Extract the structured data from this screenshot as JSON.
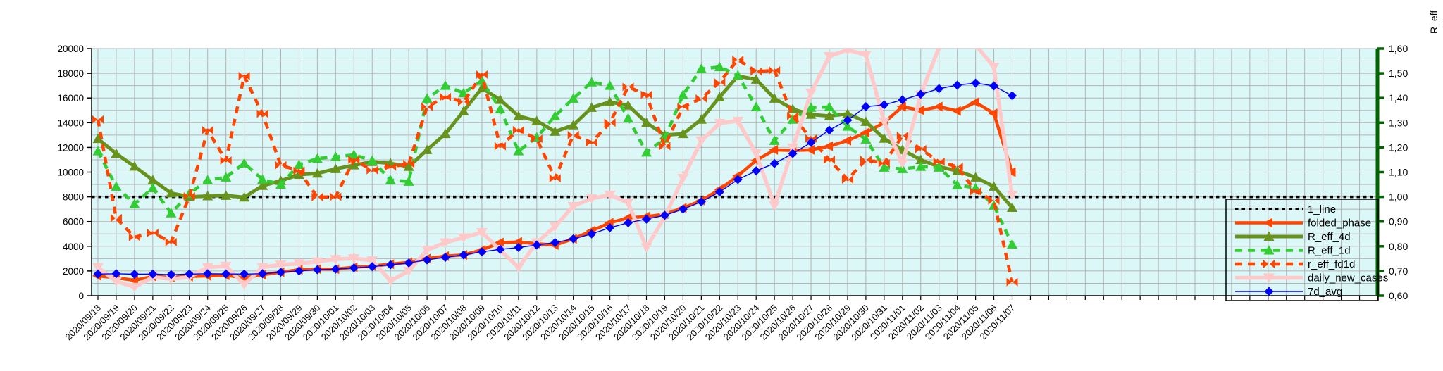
{
  "chart_data": {
    "type": "line",
    "title": "",
    "x_axis": {
      "label": "",
      "tick_rotation_deg": -45,
      "categories": [
        "2020/09/18",
        "2020/09/19",
        "2020/09/20",
        "2020/09/21",
        "2020/09/22",
        "2020/09/23",
        "2020/09/24",
        "2020/09/25",
        "2020/09/26",
        "2020/09/27",
        "2020/09/28",
        "2020/09/29",
        "2020/09/30",
        "2020/10/01",
        "2020/10/02",
        "2020/10/03",
        "2020/10/04",
        "2020/10/05",
        "2020/10/06",
        "2020/10/07",
        "2020/10/08",
        "2020/10/09",
        "2020/10/10",
        "2020/10/11",
        "2020/10/12",
        "2020/10/13",
        "2020/10/14",
        "2020/10/15",
        "2020/10/16",
        "2020/10/17",
        "2020/10/18",
        "2020/10/19",
        "2020/10/20",
        "2020/10/21",
        "2020/10/22",
        "2020/10/23",
        "2020/10/24",
        "2020/10/25",
        "2020/10/26",
        "2020/10/27",
        "2020/10/28",
        "2020/10/29",
        "2020/10/30",
        "2020/10/31",
        "2020/11/01",
        "2020/11/02",
        "2020/11/03",
        "2020/11/04",
        "2020/11/05",
        "2020/11/06",
        "2020/11/07"
      ]
    },
    "y_left_axis": {
      "label": "",
      "range": [
        0,
        20000
      ],
      "tick_step": 2000,
      "minor_grid_step": 1000,
      "tick_labels": [
        "0",
        "2000",
        "4000",
        "6000",
        "8000",
        "10000",
        "12000",
        "14000",
        "16000",
        "18000",
        "20000"
      ]
    },
    "y_right_axis": {
      "label": "R_eff",
      "range": [
        0.6,
        1.6
      ],
      "tick_step": 0.1,
      "tick_labels": [
        "0,60",
        "0,70",
        "0,80",
        "0,90",
        "1,00",
        "1,10",
        "1,20",
        "1,30",
        "1,40",
        "1,50",
        "1,60"
      ],
      "axis_color": "#006400"
    },
    "grid": true,
    "plot_background": "#dcf7f7",
    "grid_color": "#b3b3b3",
    "legend_position": "bottom-right",
    "series": [
      {
        "name": "1_line",
        "axis": "right",
        "style": "dotted",
        "color": "#000000",
        "width": 3.5,
        "marker": "none",
        "constant": 1.0
      },
      {
        "name": "folded_phase",
        "axis": "left",
        "style": "solid",
        "color": "#ff4500",
        "width": 4.5,
        "marker": "triangle-left",
        "values": [
          1600,
          1450,
          1250,
          1550,
          1500,
          1550,
          1600,
          1650,
          1450,
          1700,
          1900,
          2100,
          2150,
          2150,
          2300,
          2400,
          2550,
          2700,
          3000,
          3200,
          3300,
          3700,
          4300,
          4350,
          4200,
          4100,
          4600,
          5250,
          5900,
          6300,
          6400,
          6600,
          7100,
          7700,
          8600,
          9700,
          10950,
          11800,
          11750,
          11800,
          12100,
          12550,
          13200,
          14000,
          15300,
          15000,
          15300,
          14950,
          15650,
          14750,
          10000
        ]
      },
      {
        "name": "R_eff_4d",
        "axis": "right",
        "style": "solid",
        "color": "#67931d",
        "width": 5,
        "marker": "triangle-up",
        "values": [
          1.235,
          1.175,
          1.123,
          1.068,
          1.015,
          1.0,
          1.003,
          1.005,
          0.998,
          1.045,
          1.065,
          1.09,
          1.095,
          1.113,
          1.128,
          1.142,
          1.136,
          1.122,
          1.19,
          1.255,
          1.347,
          1.44,
          1.393,
          1.327,
          1.307,
          1.264,
          1.29,
          1.361,
          1.384,
          1.37,
          1.3,
          1.25,
          1.255,
          1.313,
          1.404,
          1.489,
          1.475,
          1.398,
          1.355,
          1.333,
          1.327,
          1.336,
          1.304,
          1.236,
          1.19,
          1.15,
          1.122,
          1.105,
          1.079,
          1.042,
          0.956
        ]
      },
      {
        "name": "R_eff_1d",
        "axis": "right",
        "style": "dashed",
        "color": "#32cd32",
        "width": 4.5,
        "marker": "triangle-up",
        "values": [
          1.185,
          1.042,
          0.971,
          1.036,
          0.934,
          1.013,
          1.068,
          1.079,
          1.136,
          1.07,
          1.05,
          1.13,
          1.155,
          1.162,
          1.17,
          1.147,
          1.068,
          1.062,
          1.398,
          1.45,
          1.42,
          1.47,
          1.355,
          1.185,
          1.241,
          1.327,
          1.398,
          1.464,
          1.45,
          1.318,
          1.18,
          1.236,
          1.413,
          1.518,
          1.526,
          1.492,
          1.364,
          1.227,
          1.313,
          1.361,
          1.364,
          1.285,
          1.233,
          1.119,
          1.113,
          1.122,
          1.119,
          1.048,
          1.036,
          0.965,
          0.808
        ]
      },
      {
        "name": "r_eff_fd1d",
        "axis": "right",
        "style": "dashed",
        "color": "#ff4500",
        "width": 4.5,
        "marker": "bowtie",
        "values": [
          1.313,
          0.914,
          0.837,
          0.854,
          0.817,
          1.002,
          1.27,
          1.147,
          1.489,
          1.336,
          1.128,
          1.105,
          0.999,
          1.0,
          1.15,
          1.108,
          1.122,
          1.133,
          1.364,
          1.404,
          1.384,
          1.495,
          1.205,
          1.27,
          1.235,
          1.075,
          1.25,
          1.22,
          1.3,
          1.445,
          1.413,
          1.205,
          1.364,
          1.398,
          1.464,
          1.555,
          1.507,
          1.512,
          1.327,
          1.236,
          1.15,
          1.07,
          1.15,
          1.136,
          1.247,
          1.193,
          1.142,
          1.122,
          1.022,
          0.985,
          0.655
        ]
      },
      {
        "name": "daily_new_cases",
        "axis": "left",
        "style": "solid",
        "color": "#ffc9c9",
        "width": 5.5,
        "marker": "triangle-down",
        "values": [
          2300,
          1150,
          700,
          1500,
          1350,
          1500,
          2300,
          2400,
          900,
          2300,
          2500,
          2600,
          2750,
          2950,
          3020,
          2850,
          1200,
          2000,
          3700,
          4300,
          4700,
          5130,
          3700,
          2280,
          4300,
          5600,
          7240,
          7870,
          8150,
          7520,
          3900,
          6380,
          9520,
          12540,
          13960,
          14140,
          11510,
          7300,
          11970,
          16420,
          19380,
          19900,
          19490,
          14080,
          10720,
          16250,
          20100,
          20600,
          20300,
          18520,
          8150
        ]
      },
      {
        "name": "7d_avg",
        "axis": "left",
        "style": "solid",
        "color": "#0000ff",
        "width": 1.4,
        "marker": "diamond",
        "values": [
          1750,
          1780,
          1740,
          1750,
          1700,
          1750,
          1780,
          1760,
          1750,
          1780,
          1900,
          2000,
          2100,
          2150,
          2250,
          2350,
          2500,
          2650,
          2900,
          3100,
          3300,
          3550,
          3750,
          3900,
          4100,
          4300,
          4600,
          5000,
          5500,
          5900,
          6200,
          6500,
          7000,
          7600,
          8400,
          9400,
          10100,
          10700,
          11500,
          12400,
          13400,
          14200,
          15300,
          15450,
          15850,
          16300,
          16760,
          17040,
          17210,
          16980,
          16190
        ]
      }
    ],
    "legend": [
      "1_line",
      "folded_phase",
      "R_eff_4d",
      "R_eff_1d",
      "r_eff_fd1d",
      "daily_new_cases",
      "7d_avg"
    ]
  }
}
